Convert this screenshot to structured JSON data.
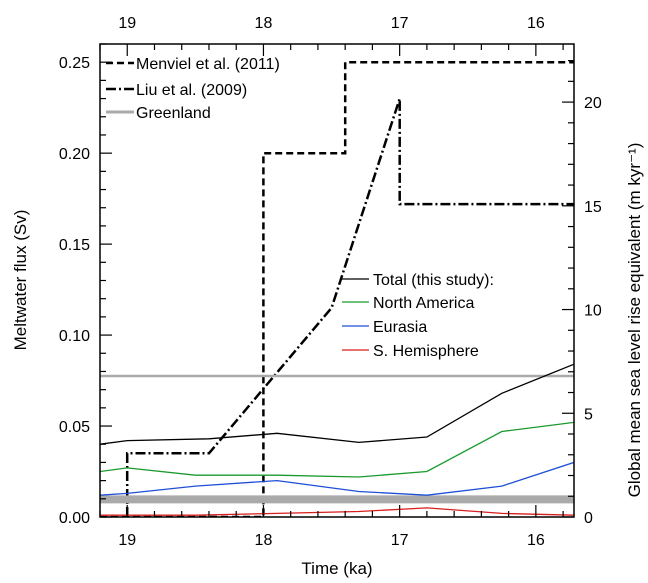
{
  "chart_data": {
    "type": "line",
    "xlabel": "Time (ka)",
    "ylabel": "Meltwater flux (Sv)",
    "ylabel_right": "Global mean sea level rise equivalent (m kyr⁻¹)",
    "xlim": [
      19.2,
      15.72
    ],
    "ylim": [
      0,
      0.26
    ],
    "yright_lim": [
      0,
      22.8
    ],
    "x_ticks": [
      19,
      18,
      17,
      16
    ],
    "x_tick_labels": [
      "19",
      "18",
      "17",
      "16"
    ],
    "y_ticks": [
      0,
      0.05,
      0.1,
      0.15,
      0.2,
      0.25
    ],
    "y_tick_labels": [
      "0.00",
      "0.05",
      "0.10",
      "0.15",
      "0.20",
      "0.25"
    ],
    "y_right_ticks": [
      0,
      5,
      10,
      15,
      20
    ],
    "y_right_tick_labels": [
      "0",
      "5",
      "10",
      "15",
      "20"
    ],
    "legend_top": [
      "Menviel et al. (2011)",
      "Liu et al. (2009)",
      "Greenland"
    ],
    "legend_bottom": [
      "Total (this study):",
      "North America",
      "Eurasia",
      "S. Hemisphere"
    ],
    "series": [
      {
        "name": "Menviel et al. (2011)",
        "color": "#000000",
        "style": "dashed",
        "width": 2.5,
        "x": [
          19.2,
          19.0,
          19.0,
          18.0,
          18.0,
          17.4,
          17.4,
          15.72
        ],
        "y": [
          0.0,
          0.0,
          0.0,
          0.0,
          0.2,
          0.2,
          0.25,
          0.25
        ]
      },
      {
        "name": "Liu et al. (2009)",
        "color": "#000000",
        "style": "dashdot",
        "width": 2.5,
        "x": [
          19.0,
          19.0,
          18.4,
          17.5,
          17.0,
          17.0,
          15.72
        ],
        "y": [
          0.0,
          0.035,
          0.035,
          0.115,
          0.23,
          0.172,
          0.172
        ]
      },
      {
        "name": "Greenland",
        "color": "#aaaaaa",
        "style": "solid",
        "width": 8,
        "x": [
          19.2,
          15.72
        ],
        "y": [
          0.0097,
          0.0097
        ]
      },
      {
        "name": "",
        "color": "#aaaaaa",
        "style": "solid",
        "width": 2.5,
        "x": [
          19.2,
          15.72
        ],
        "y": [
          0.0775,
          0.0775
        ]
      },
      {
        "name": "Total (this study):",
        "color": "#000000",
        "style": "solid",
        "width": 1.3,
        "x": [
          19.2,
          19.0,
          18.4,
          17.9,
          17.3,
          16.8,
          16.25,
          15.72
        ],
        "y": [
          0.04,
          0.042,
          0.043,
          0.046,
          0.041,
          0.044,
          0.068,
          0.084
        ]
      },
      {
        "name": "North America",
        "color": "#1a9a2e",
        "style": "solid",
        "width": 1.3,
        "x": [
          19.2,
          19.0,
          18.5,
          17.9,
          17.3,
          16.8,
          16.25,
          15.72
        ],
        "y": [
          0.025,
          0.027,
          0.023,
          0.023,
          0.022,
          0.025,
          0.047,
          0.052
        ]
      },
      {
        "name": "Eurasia",
        "color": "#1f4fd6",
        "style": "solid",
        "width": 1.3,
        "x": [
          19.2,
          19.0,
          18.5,
          17.9,
          17.3,
          16.8,
          16.25,
          15.72
        ],
        "y": [
          0.012,
          0.013,
          0.017,
          0.02,
          0.014,
          0.012,
          0.017,
          0.03
        ]
      },
      {
        "name": "S. Hemisphere",
        "color": "#d91e1e",
        "style": "solid",
        "width": 1.3,
        "x": [
          19.2,
          19.0,
          18.5,
          17.9,
          17.3,
          16.8,
          16.25,
          15.72
        ],
        "y": [
          0.001,
          0.001,
          0.001,
          0.002,
          0.003,
          0.005,
          0.002,
          0.001
        ]
      }
    ]
  }
}
